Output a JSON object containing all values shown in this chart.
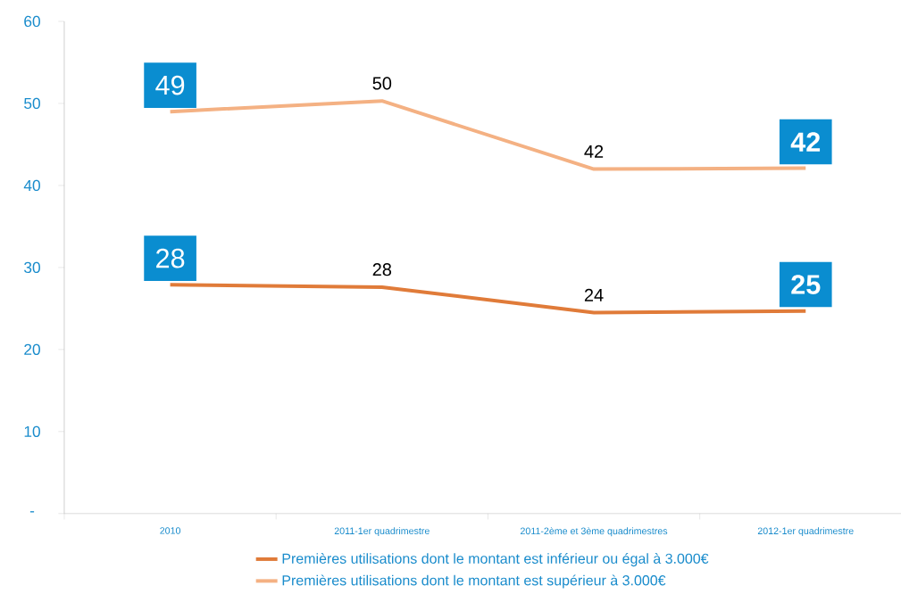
{
  "chart_data": {
    "type": "line",
    "categories": [
      "2010",
      "2011-1er quadrimestre",
      "2011-2ème et 3ème quadrimestres",
      "2012-1er quadrimestre"
    ],
    "series": [
      {
        "name": "Premières utilisations dont le montant est inférieur ou égal à 3.000€",
        "color": "#e07b39",
        "values": [
          27.9,
          27.6,
          24.5,
          24.7
        ],
        "value_labels": [
          "28",
          "28",
          "24",
          "25"
        ]
      },
      {
        "name": "Premières utilisations dont le montant est supérieur à 3.000€",
        "color": "#f4b183",
        "values": [
          49,
          50.3,
          42,
          42.1
        ],
        "value_labels": [
          "49",
          "50",
          "42",
          "42"
        ]
      }
    ],
    "ylim": [
      0,
      60
    ],
    "yticks": [
      {
        "value": 0,
        "label": "-"
      },
      10,
      20,
      30,
      40,
      50,
      60
    ],
    "grid": false,
    "legend": "bottom",
    "marker": "none",
    "line_style": "solid"
  }
}
